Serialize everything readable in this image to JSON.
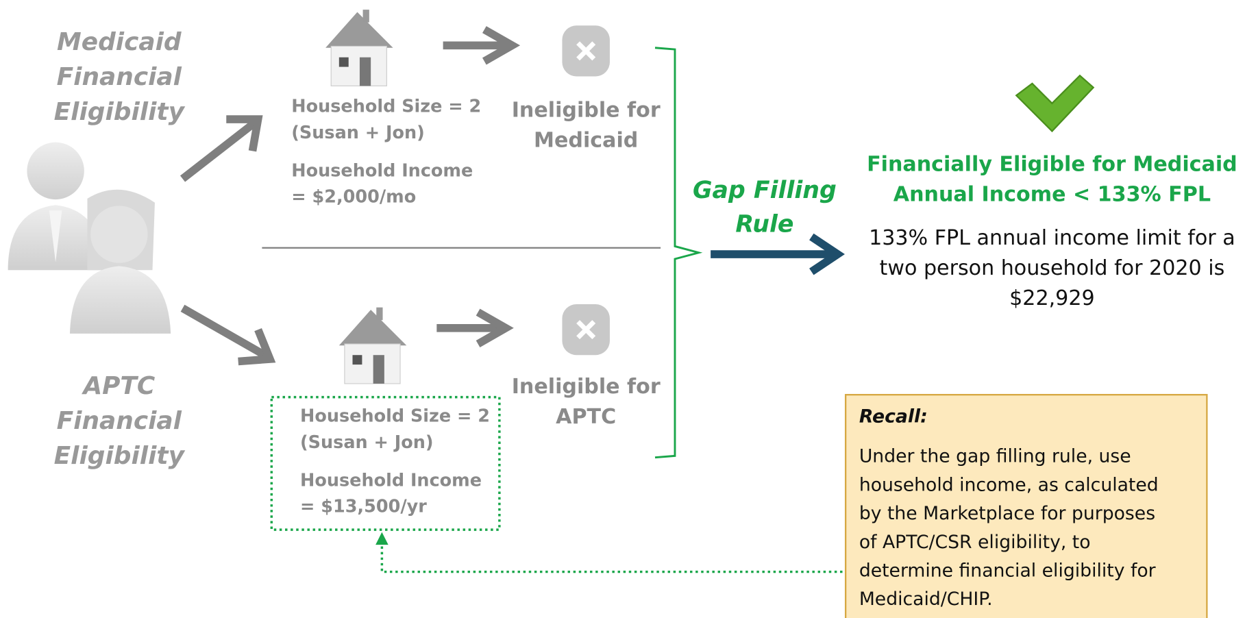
{
  "medicaid": {
    "title_lines": [
      "Medicaid",
      "Financial",
      "Eligibility"
    ],
    "household_lines": [
      "Household Size = 2",
      "(Susan + Jon)"
    ],
    "income_lines": [
      "Household Income",
      "= $2,000/mo"
    ],
    "result_lines": [
      "Ineligible for",
      "Medicaid"
    ]
  },
  "aptc": {
    "title_lines": [
      "APTC",
      "Financial",
      "Eligibility"
    ],
    "household_lines": [
      "Household Size = 2",
      "(Susan + Jon)"
    ],
    "income_lines": [
      "Household Income",
      "= $13,500/yr"
    ],
    "result_lines": [
      "Ineligible for",
      "APTC"
    ]
  },
  "rule_lines": [
    "Gap Filling",
    "Rule"
  ],
  "outcome": {
    "heading_lines": [
      "Financially Eligible for Medicaid",
      "Annual Income < 133% FPL"
    ],
    "detail_lines": [
      "133% FPL annual income limit for a",
      "two person household for 2020 is",
      "$22,929"
    ]
  },
  "recall": {
    "title": "Recall:",
    "lines": [
      "Under the gap filling rule, use",
      "household income, as calculated",
      "by the Marketplace for purposes",
      "of APTC/CSR eligibility, to",
      "determine financial eligibility for",
      "Medicaid/CHIP."
    ]
  }
}
